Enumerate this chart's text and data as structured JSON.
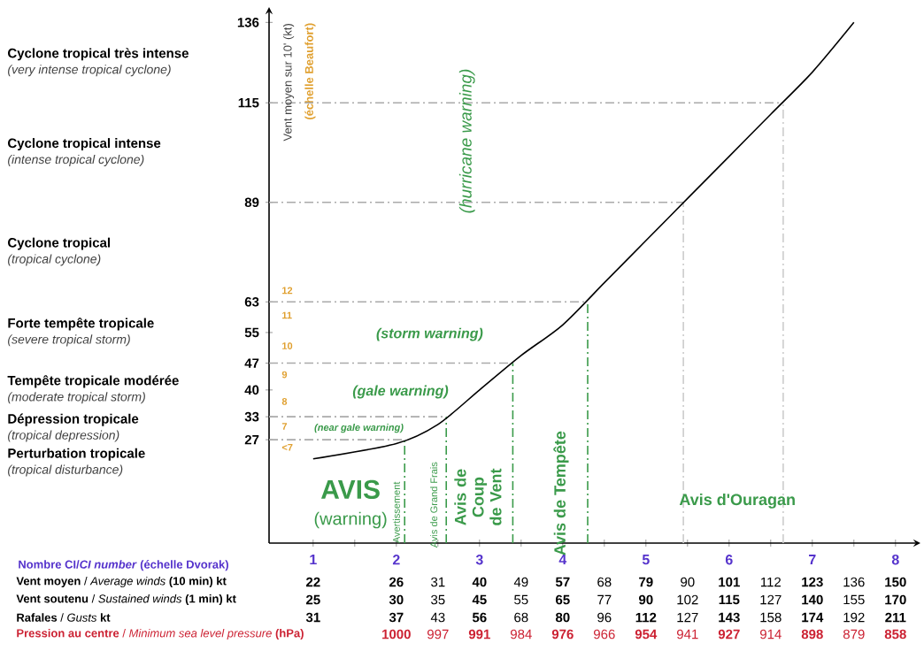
{
  "chart_data": {
    "type": "line",
    "xlabel": "Nombre CI/*CI number* (échelle Dvorak)",
    "ylabel": "Vent moyen sur 10' (kt)",
    "series": [
      {
        "color": "#000000",
        "x": [
          1,
          2,
          2.5,
          3,
          3.5,
          4,
          4.5,
          5,
          5.5,
          6,
          6.5,
          7,
          7.5
        ],
        "values": [
          22,
          26,
          31,
          40,
          49,
          57,
          68,
          79,
          90,
          101,
          112,
          123,
          136
        ]
      }
    ],
    "xlim": [
      0.47,
      8.3
    ],
    "ylim": [
      0,
      140
    ],
    "xticks": [
      1,
      {
        "value": 1.5,
        "label": null
      },
      2,
      {
        "value": 2.5,
        "label": null
      },
      3,
      {
        "value": 3.5,
        "label": null
      },
      4,
      {
        "value": 4.5,
        "label": null
      },
      5,
      {
        "value": 5.5,
        "label": null
      },
      6,
      {
        "value": 6.5,
        "label": null
      },
      7,
      {
        "value": 7.5,
        "label": null
      },
      8
    ],
    "yticks": [
      27,
      33,
      40,
      47,
      55,
      63,
      89,
      115,
      136
    ],
    "marker": "none",
    "grid": false,
    "ref_lines": [
      {
        "axis": "y",
        "value": 27,
        "color": "#aaaaaa",
        "line_style": "dashed"
      },
      {
        "axis": "y",
        "value": 33,
        "color": "#aaaaaa",
        "line_style": "dashed"
      },
      {
        "axis": "y",
        "value": 47,
        "color": "#aaaaaa",
        "line_style": "dashed"
      },
      {
        "axis": "y",
        "value": 63,
        "color": "#aaaaaa",
        "line_style": "dashed"
      },
      {
        "axis": "y",
        "value": 89,
        "color": "#aaaaaa",
        "line_style": "dashed"
      },
      {
        "axis": "y",
        "value": 115,
        "color": "#aaaaaa",
        "line_style": "dashed"
      },
      {
        "axis": "x",
        "value": 2.1,
        "color": "#3a9a4a",
        "line_style": "dashed"
      },
      {
        "axis": "x",
        "value": 2.6,
        "color": "#3a9a4a",
        "line_style": "dashed"
      },
      {
        "axis": "x",
        "value": 3.4,
        "color": "#3a9a4a",
        "line_style": "dashed"
      },
      {
        "axis": "x",
        "value": 4.3,
        "color": "#3a9a4a",
        "line_style": "dashed"
      },
      {
        "axis": "x",
        "value": 5.45,
        "color": "#cccccc",
        "line_style": "dashed"
      },
      {
        "axis": "x",
        "value": 6.65,
        "color": "#cccccc",
        "line_style": "dashed"
      }
    ],
    "annotations": [
      "(near gale warning)",
      "(gale warning)",
      "(storm warning)",
      "(hurricane warning)",
      "AVIS",
      "(warning)",
      "Avertissement",
      "Avis de Grand Frais",
      "Avis de Coup de Vent",
      "Avis de Tempête",
      "Avis d'Ouragan",
      "(tropical disturbance)",
      "(tropical depression)",
      "(moderate tropical storm)",
      "(severe tropical storm)",
      "(tropical cyclone)",
      "(intense tropical cyclone)",
      "(very intense tropical cyclone)",
      "**Vent moyen** / *Average winds* **(10 min) kt**",
      "**Vent soutenu** / *Sustained winds* **(1 min) kt**",
      "**Rafales** / *Gusts* **kt**",
      "**Pression au centre** / *Minimum sea level pressure* **(hPa)**",
      "22",
      "26",
      "31",
      "40",
      "49",
      "57",
      "68",
      "79",
      "90",
      "101",
      "112",
      "123",
      "136",
      "150",
      "25",
      "30",
      "35",
      "45",
      "55",
      "65",
      "77",
      "90",
      "102",
      "115",
      "127",
      "140",
      "155",
      "170",
      "31",
      "37",
      "43",
      "56",
      "68",
      "80",
      "96",
      "112",
      "127",
      "143",
      "158",
      "174",
      "192",
      "211",
      "1000",
      "997",
      "991",
      "984",
      "976",
      "966",
      "954",
      "941",
      "927",
      "914",
      "898",
      "879",
      "858",
      "Perturbation tropicale",
      "Dépression tropicale",
      "Tempête tropicale modérée",
      "Forte tempête tropicale",
      "Cyclone tropical",
      "Cyclone tropical intense",
      "Cyclone tropical très intense",
      "<7",
      "7",
      "8",
      "9",
      "10",
      "11",
      "12",
      "(échelle Beaufort)"
    ]
  }
}
